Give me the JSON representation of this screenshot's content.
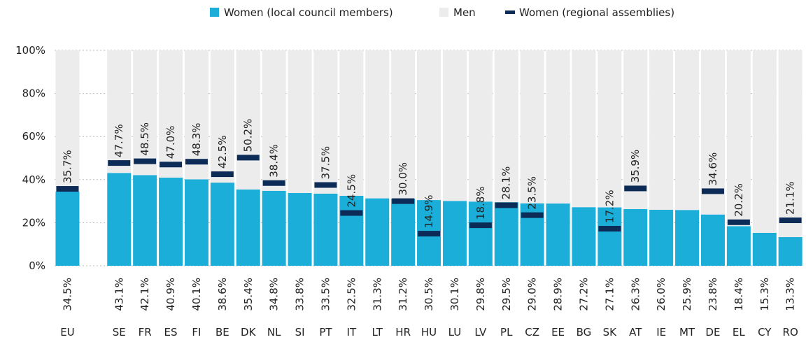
{
  "chart_data": {
    "type": "bar",
    "stacked": true,
    "categories": [
      "EU",
      null,
      "SE",
      "FR",
      "ES",
      "FI",
      "BE",
      "DK",
      "NL",
      "SI",
      "PT",
      "IT",
      "LT",
      "HR",
      "HU",
      "LU",
      "LV",
      "PL",
      "CZ",
      "EE",
      "BG",
      "SK",
      "AT",
      "IE",
      "MT",
      "DE",
      "EL",
      "CY",
      "RO"
    ],
    "series": [
      {
        "name": "Women (local council members)",
        "type": "bar",
        "color": "#1aaed9",
        "values": [
          34.5,
          null,
          43.1,
          42.1,
          40.9,
          40.1,
          38.6,
          35.4,
          34.8,
          33.8,
          33.5,
          32.5,
          31.3,
          31.2,
          30.5,
          30.1,
          29.8,
          29.5,
          29.0,
          28.9,
          27.2,
          27.1,
          26.3,
          26.0,
          25.9,
          23.8,
          18.4,
          15.3,
          13.3
        ],
        "value_labels": [
          "34.5%",
          null,
          "43.1%",
          "42.1%",
          "40.9%",
          "40.1%",
          "38.6%",
          "35.4%",
          "34.8%",
          "33.8%",
          "33.5%",
          "32.5%",
          "31.3%",
          "31.2%",
          "30.5%",
          "30.1%",
          "29.8%",
          "29.5%",
          "29.0%",
          "28.9%",
          "27.2%",
          "27.1%",
          "26.3%",
          "26.0%",
          "25.9%",
          "23.8%",
          "18.4%",
          "15.3%",
          "13.3%"
        ]
      },
      {
        "name": "Men",
        "type": "bar",
        "color": "#ececec",
        "values": [
          65.5,
          null,
          56.9,
          57.9,
          59.1,
          59.9,
          61.4,
          64.6,
          65.2,
          66.2,
          66.5,
          67.5,
          68.7,
          68.8,
          69.5,
          69.9,
          70.2,
          70.5,
          71.0,
          71.1,
          72.8,
          72.9,
          73.7,
          74.0,
          74.1,
          76.2,
          81.6,
          84.7,
          86.7
        ]
      },
      {
        "name": "Women (regional assemblies)",
        "type": "marker",
        "color": "#0d2b57",
        "values": [
          35.7,
          null,
          47.7,
          48.5,
          47.0,
          48.3,
          42.5,
          50.2,
          38.4,
          null,
          37.5,
          24.5,
          null,
          30.0,
          14.9,
          null,
          18.8,
          28.1,
          23.5,
          null,
          null,
          17.2,
          35.9,
          null,
          null,
          34.6,
          20.2,
          null,
          21.1
        ],
        "value_labels": [
          "35.7%",
          null,
          "47.7%",
          "48.5%",
          "47.0%",
          "48.3%",
          "42.5%",
          "50.2%",
          "38.4%",
          null,
          "37.5%",
          "24.5%",
          null,
          "30.0%",
          "14.9%",
          null,
          "18.8%",
          "28.1%",
          "23.5%",
          null,
          null,
          "17.2%",
          "35.9%",
          null,
          null,
          "34.6%",
          "20.2%",
          null,
          "21.1%"
        ]
      }
    ],
    "ylim": [
      0,
      100
    ],
    "yticks": [
      {
        "value": 0,
        "label": "0%"
      },
      {
        "value": 20,
        "label": "20%"
      },
      {
        "value": 40,
        "label": "40%"
      },
      {
        "value": 60,
        "label": "60%"
      },
      {
        "value": 80,
        "label": "80%"
      },
      {
        "value": 100,
        "label": "100%"
      }
    ],
    "grid": true,
    "legend": "top"
  }
}
